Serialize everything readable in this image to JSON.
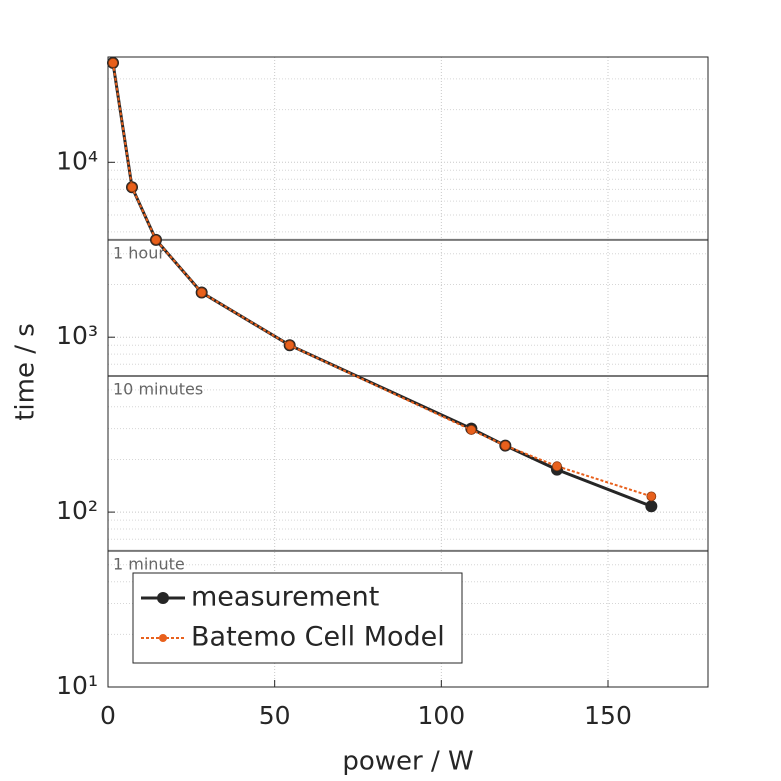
{
  "chart_data": {
    "type": "line",
    "xlabel": "power / W",
    "ylabel": "time / s",
    "xlim": [
      0,
      180
    ],
    "xticks": [
      0,
      50,
      100,
      150
    ],
    "ylim": [
      10,
      40000
    ],
    "yscale": "log",
    "yticks": [
      {
        "value": 10,
        "label": "10¹"
      },
      {
        "value": 100,
        "label": "10²"
      },
      {
        "value": 1000,
        "label": "10³"
      },
      {
        "value": 10000,
        "label": "10⁴"
      }
    ],
    "grid": true,
    "legend": "lower left",
    "reference_lines": [
      {
        "value": 3600,
        "label": "1 hour"
      },
      {
        "value": 600,
        "label": "10 minutes"
      },
      {
        "value": 60,
        "label": "1 minute"
      }
    ],
    "series": [
      {
        "name": "measurement",
        "color": "#262626",
        "style": "solid",
        "x": [
          1.5,
          7.2,
          14.4,
          28.1,
          54.5,
          109,
          119.2,
          134.7,
          163
        ],
        "values": [
          37000,
          7200,
          3600,
          1800,
          900,
          300,
          240,
          175,
          108
        ]
      },
      {
        "name": "Batemo Cell Model",
        "color": "#e8601c",
        "style": "dotted",
        "x": [
          1.5,
          7.2,
          14.4,
          28.1,
          54.5,
          109,
          119.2,
          134.7,
          163
        ],
        "values": [
          37000,
          7200,
          3600,
          1800,
          900,
          295,
          240,
          183,
          123
        ]
      }
    ]
  }
}
